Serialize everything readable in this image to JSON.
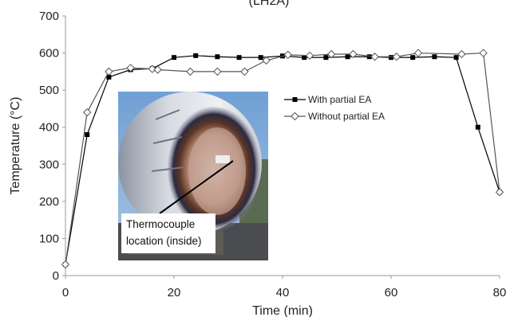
{
  "chart_data": {
    "type": "line",
    "title": "",
    "title_partial": "(LH2A)",
    "xlabel": "Time (min)",
    "ylabel": "Temperature (°C)",
    "xlim": [
      0,
      80
    ],
    "ylim": [
      0,
      700
    ],
    "x_ticks": [
      0,
      20,
      40,
      60,
      80
    ],
    "y_ticks": [
      0,
      100,
      200,
      300,
      400,
      500,
      600,
      700
    ],
    "grid": false,
    "legend_position": "right-center",
    "series": [
      {
        "name": "With partial EA",
        "marker": "filled-square",
        "color": "#000000",
        "points": [
          [
            0,
            30
          ],
          [
            4,
            380
          ],
          [
            8,
            535
          ],
          [
            12,
            555
          ],
          [
            16,
            558
          ],
          [
            20,
            588
          ],
          [
            24,
            593
          ],
          [
            28,
            590
          ],
          [
            32,
            588
          ],
          [
            36,
            588
          ],
          [
            40,
            592
          ],
          [
            44,
            588
          ],
          [
            48,
            588
          ],
          [
            52,
            590
          ],
          [
            56,
            590
          ],
          [
            60,
            588
          ],
          [
            64,
            588
          ],
          [
            68,
            590
          ],
          [
            72,
            588
          ],
          [
            76,
            400
          ],
          [
            80,
            225
          ]
        ]
      },
      {
        "name": "Without partial EA",
        "marker": "open-diamond",
        "color": "#555555",
        "points": [
          [
            0,
            30
          ],
          [
            4,
            440
          ],
          [
            8,
            550
          ],
          [
            12,
            560
          ],
          [
            16,
            557
          ],
          [
            17,
            555
          ],
          [
            23,
            550
          ],
          [
            28,
            550
          ],
          [
            33,
            550
          ],
          [
            37,
            580
          ],
          [
            41,
            595
          ],
          [
            45,
            593
          ],
          [
            49,
            597
          ],
          [
            53,
            597
          ],
          [
            57,
            590
          ],
          [
            61,
            590
          ],
          [
            65,
            600
          ],
          [
            73,
            597
          ],
          [
            77,
            600
          ],
          [
            80,
            225
          ]
        ]
      }
    ],
    "annotation": {
      "text_line1": "Thermocouple",
      "text_line2": "location (inside)"
    }
  }
}
